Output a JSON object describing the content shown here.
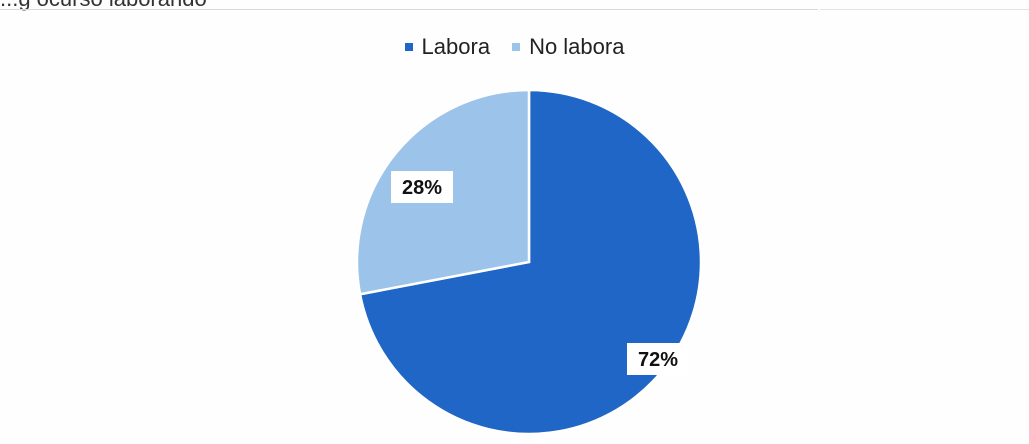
{
  "header": {
    "cut_title": "...g ocurso laborando"
  },
  "chart_data": {
    "type": "pie",
    "title": "",
    "categories": [
      "Labora",
      "No labora"
    ],
    "values": [
      72,
      28
    ],
    "labels": [
      "72%",
      "28%"
    ],
    "colors": [
      "#1f66c7",
      "#9cc3ea"
    ],
    "legend_position": "top"
  }
}
